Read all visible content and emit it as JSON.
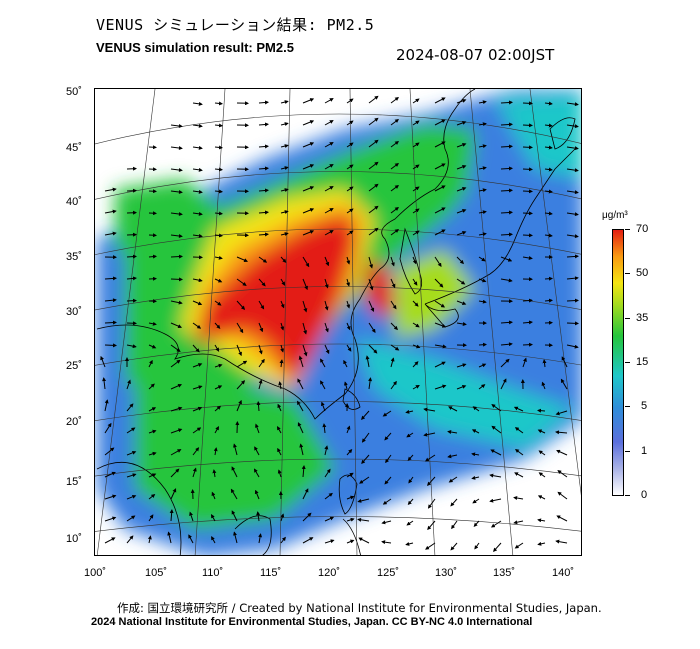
{
  "header": {
    "title_jp": "VENUS シミュレーション結果: PM2.5",
    "title_en": "VENUS simulation result: PM2.5",
    "datetime": "2024-08-07 02:00JST"
  },
  "map": {
    "lat_labels": [
      "50˚",
      "45˚",
      "40˚",
      "35˚",
      "30˚",
      "25˚",
      "20˚",
      "15˚",
      "10˚"
    ],
    "lon_labels": [
      "100˚",
      "105˚",
      "110˚",
      "115˚",
      "120˚",
      "125˚",
      "130˚",
      "135˚",
      "140˚"
    ],
    "variable": "PM2.5",
    "field_color_high": "#e31e12",
    "field_color_mid": "#25c53c",
    "field_color_low": "#2f8ed9"
  },
  "colorbar": {
    "unit": "μg/m³",
    "ticks": [
      "70",
      "50",
      "35",
      "15",
      "5",
      "1",
      "0"
    ],
    "colors": [
      "#e31e12",
      "#f99a12",
      "#f4e513",
      "#25c53c",
      "#1fc7c9",
      "#2f8ed9",
      "#5b6fdc",
      "#ffffff"
    ]
  },
  "footer": {
    "credit": "作成: 国立環境研究所 / Created by National Institute for Environmental Studies, Japan.",
    "copyright": "2024 National Institute for Environmental Studies, Japan. CC BY-NC 4.0 International"
  }
}
